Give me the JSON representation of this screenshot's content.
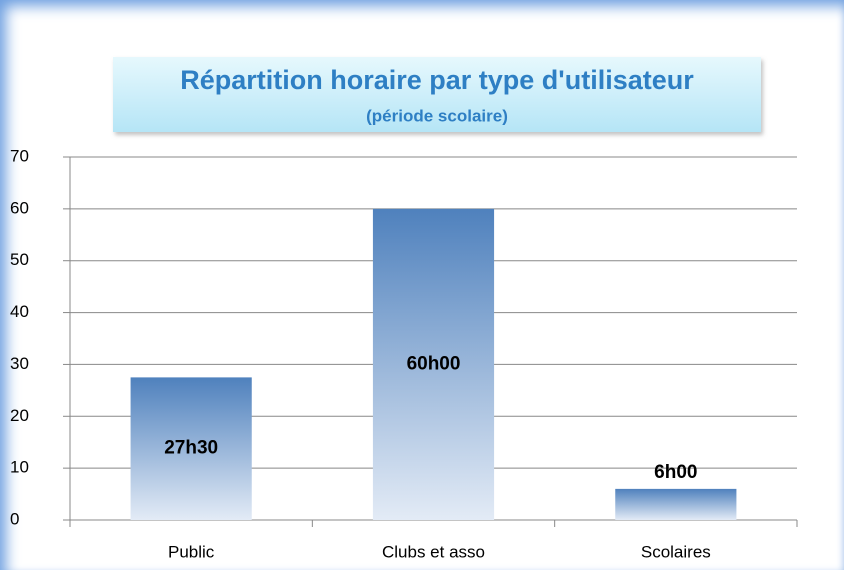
{
  "chart_data": {
    "type": "bar",
    "title": "Répartition horaire par type d'utilisateur",
    "subtitle": "(période scolaire)",
    "categories": [
      "Public",
      "Clubs et asso",
      "Scolaires"
    ],
    "values": [
      27.5,
      60,
      6
    ],
    "value_labels": [
      "27h30",
      "60h00",
      "6h00"
    ],
    "color": "#4f81bd",
    "ylim": [
      0,
      70
    ],
    "yticks": [
      0,
      10,
      20,
      30,
      40,
      50,
      60,
      70
    ],
    "grid": true
  }
}
